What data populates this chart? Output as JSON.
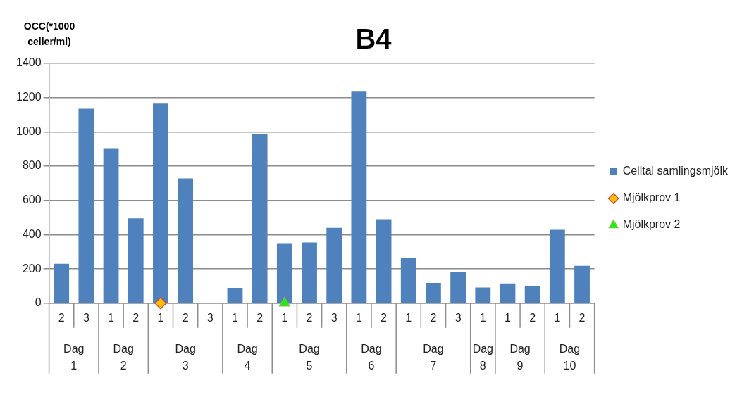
{
  "chart_data": {
    "type": "bar",
    "title": "B4",
    "ylabel": "OCC(*1000 celler/ml)",
    "categories": [
      "2",
      "3",
      "1",
      "2",
      "1",
      "2",
      "3",
      "1",
      "2",
      "1",
      "2",
      "3",
      "1",
      "2",
      "1",
      "2",
      "3",
      "1",
      "1",
      "2",
      "1",
      "2"
    ],
    "series": [
      {
        "name": "Celltal samlingsmjölk",
        "color": "#4f81bd",
        "values": [
          230,
          1135,
          905,
          495,
          1165,
          728,
          null,
          90,
          985,
          350,
          355,
          440,
          1235,
          490,
          262,
          118,
          180,
          92,
          115,
          98,
          428,
          218
        ]
      },
      {
        "name": "Mjölkprov 1",
        "type": "scatter",
        "marker": "diamond",
        "color": "#ffc000",
        "values": [
          null,
          null,
          null,
          null,
          0,
          null,
          null,
          null,
          null,
          null,
          null,
          null,
          null,
          null,
          null,
          null,
          null,
          null,
          null,
          null,
          null,
          null
        ]
      },
      {
        "name": "Mjölkprov 2",
        "type": "scatter",
        "marker": "triangle",
        "color": "#00ff00",
        "values": [
          null,
          null,
          null,
          null,
          null,
          null,
          null,
          null,
          null,
          0,
          null,
          null,
          null,
          null,
          null,
          null,
          null,
          null,
          null,
          null,
          null,
          null
        ]
      }
    ],
    "annotations": [
      "Dag 1",
      "Dag 2",
      "Dag 3",
      "Dag 4",
      "Dag 5",
      "Dag 6",
      "Dag 7",
      "Dag 8",
      "Dag 9",
      "Dag 10"
    ],
    "ylim": [
      0,
      1400
    ],
    "yticks": [
      0,
      200,
      400,
      600,
      800,
      1000,
      1200,
      1400
    ],
    "grid": "y",
    "legend": "right"
  }
}
